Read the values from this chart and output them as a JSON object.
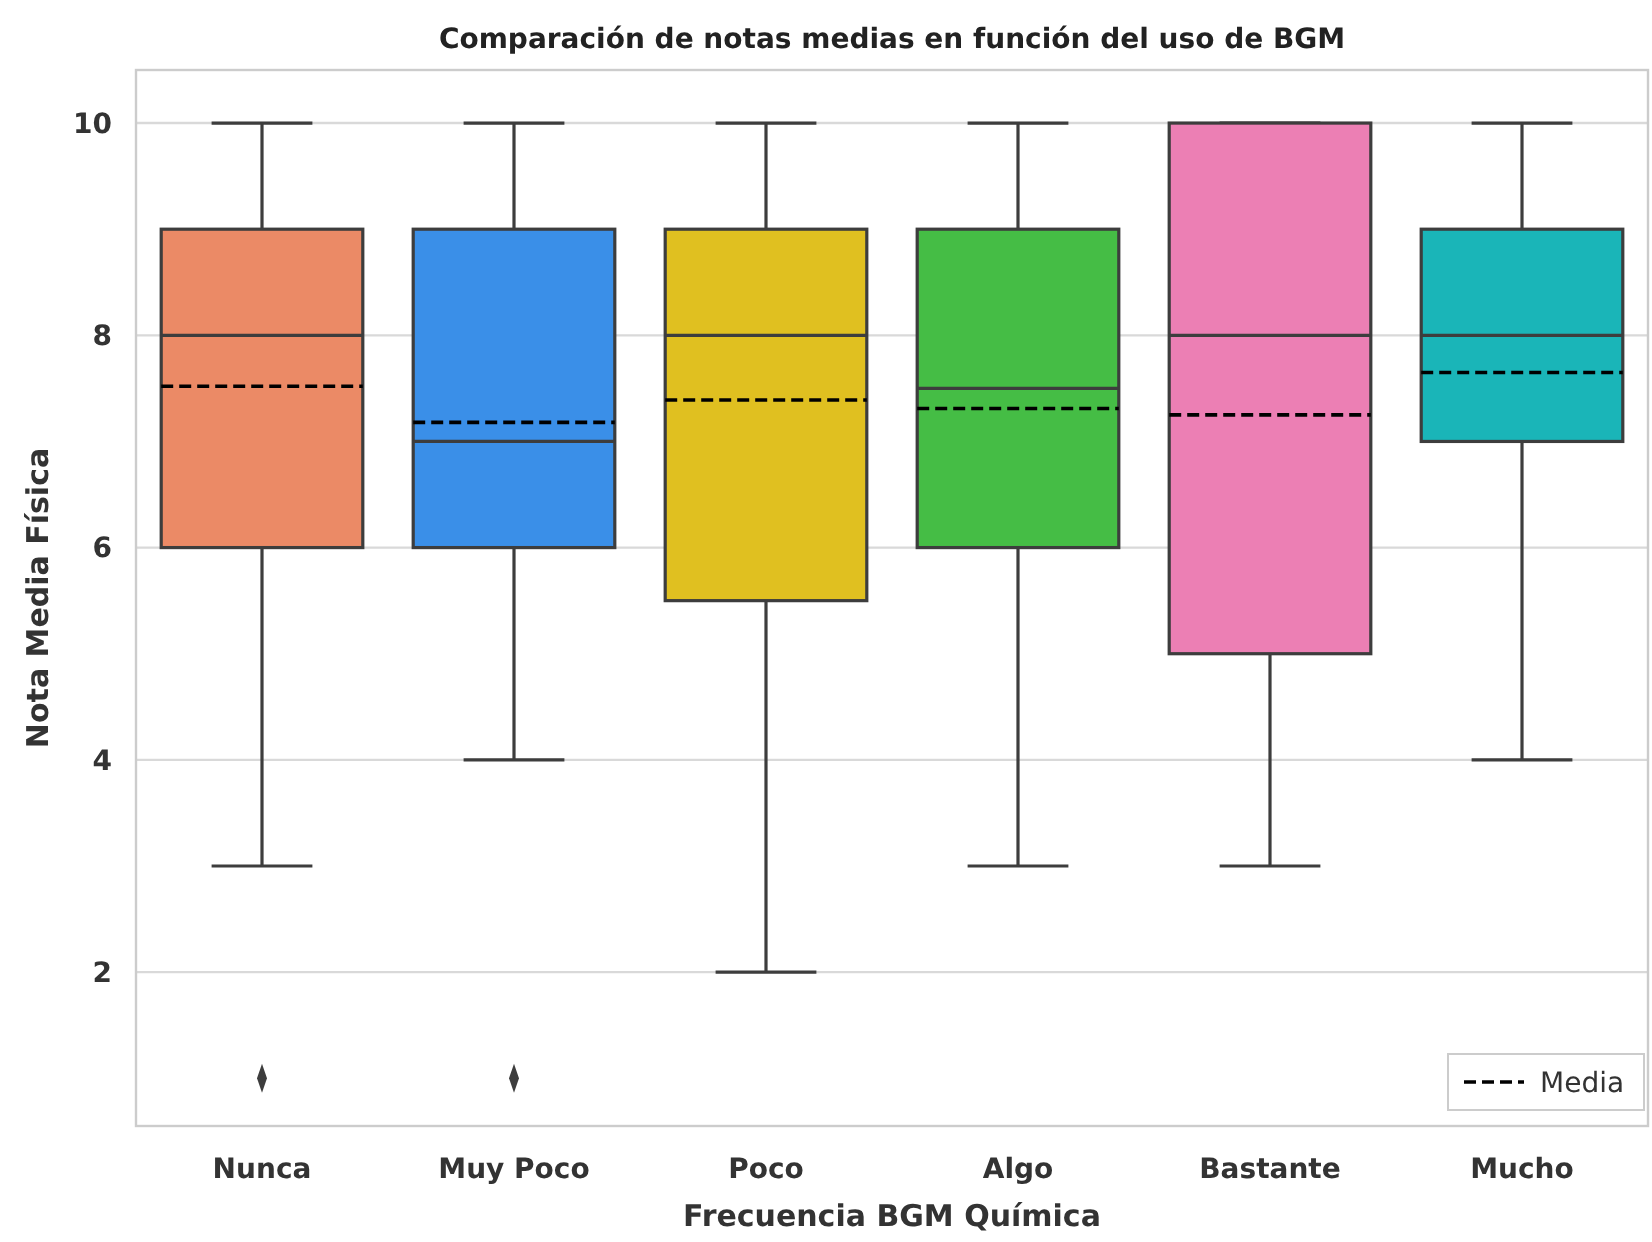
{
  "chart_data": {
    "type": "box",
    "title": "Comparación de notas medias en función del uso de BGM",
    "xlabel": "Frecuencia BGM Química",
    "ylabel": "Nota Media Física",
    "categories": [
      "Nunca",
      "Muy Poco",
      "Poco",
      "Algo",
      "Bastante",
      "Mucho"
    ],
    "series": [
      {
        "name": "Media",
        "color": "#000000",
        "line_style": "dashed",
        "colors": [
          "#eb8a66",
          "#3a8fe8",
          "#e0c020",
          "#45bd45",
          "#ec7fb4",
          "#1ab5b8"
        ],
        "boxes": [
          {
            "low": 3,
            "q1": 6,
            "median": 8,
            "q3": 9,
            "high": 10,
            "mean": 7.52,
            "outliers": [
              1
            ]
          },
          {
            "low": 4,
            "q1": 6,
            "median": 7,
            "q3": 9,
            "high": 10,
            "mean": 7.18,
            "outliers": [
              1
            ]
          },
          {
            "low": 2,
            "q1": 5.5,
            "median": 8,
            "q3": 9,
            "high": 10,
            "mean": 7.39
          },
          {
            "low": 3,
            "q1": 6,
            "median": 7.5,
            "q3": 9,
            "high": 10,
            "mean": 7.31
          },
          {
            "low": 3,
            "q1": 5,
            "median": 8,
            "q3": 10,
            "high": 10,
            "mean": 7.25
          },
          {
            "low": 4,
            "q1": 7,
            "median": 8,
            "q3": 9,
            "high": 10,
            "mean": 7.65
          }
        ]
      }
    ],
    "ylim": [
      0.55,
      10.5
    ],
    "yticks": [
      2,
      4,
      6,
      8,
      10
    ],
    "grid": "y",
    "legend": "bottom right",
    "marker": "diamond"
  }
}
